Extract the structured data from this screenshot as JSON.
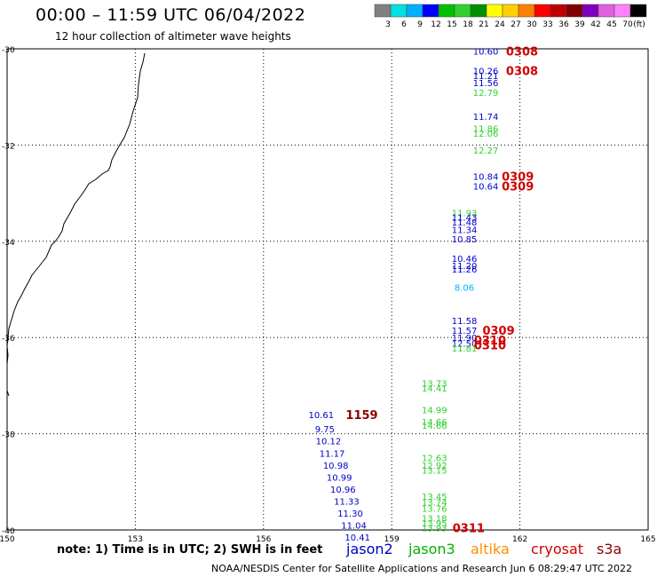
{
  "header": {
    "title": "00:00 – 11:59 UTC 06/04/2022",
    "subtitle": "12 hour collection of altimeter wave heights"
  },
  "colorbar": {
    "colors": [
      "#808080",
      "#00e0e0",
      "#00b0ff",
      "#0000ff",
      "#00c000",
      "#30d030",
      "#009000",
      "#ffff00",
      "#ffd000",
      "#ff8000",
      "#ff0000",
      "#c00000",
      "#800000",
      "#8000c0",
      "#e060e0",
      "#ff80ff",
      "#000000"
    ],
    "labels": [
      "3",
      "6",
      "9",
      "12",
      "15",
      "18",
      "21",
      "24",
      "27",
      "30",
      "33",
      "36",
      "39",
      "42",
      "45",
      "70",
      "(ft)"
    ]
  },
  "axes": {
    "lon_labels": [
      "150",
      "153",
      "156",
      "159",
      "162",
      "165"
    ],
    "lat_labels": [
      "-30",
      "-32",
      "-34",
      "-36",
      "-38",
      "-40"
    ]
  },
  "satellites": {
    "jason2": {
      "name": "jason2",
      "color": "#0000c8"
    },
    "jason3": {
      "name": "jason3",
      "color": "#00b000"
    },
    "altika": {
      "name": "altika",
      "color": "#ff8c00"
    },
    "cryosat": {
      "name": "cryosat",
      "color": "#d00000"
    },
    "s3a": {
      "name": "s3a",
      "color": "#8b0000"
    }
  },
  "footer": {
    "note": "note: 1) Time is in UTC; 2) SWH is in feet",
    "credit": "NOAA/NESDIS Center for Satellite Applications and Research   Jun  6 08:29:47 UTC 2022"
  },
  "chart_data": {
    "type": "scatter",
    "xlim": [
      150,
      165
    ],
    "ylim": [
      -40,
      -30
    ],
    "track_a_time": "0308",
    "track_a": [
      {
        "lat": -30.05,
        "v": "10.60",
        "c": "#0000c8"
      },
      {
        "lat": -30.45,
        "v": "10.26",
        "c": "#0000c8"
      },
      {
        "lat": -30.55,
        "v": "11.21",
        "c": "#0000c8"
      },
      {
        "lat": -30.7,
        "v": "11.56",
        "c": "#0000c8"
      },
      {
        "lat": -30.9,
        "v": "12.79",
        "c": "#30d030"
      },
      {
        "lat": -31.4,
        "v": "11.74",
        "c": "#0000c8"
      },
      {
        "lat": -31.65,
        "v": "11.86",
        "c": "#30d030"
      },
      {
        "lat": -31.75,
        "v": "12.06",
        "c": "#30d030"
      },
      {
        "lat": -32.1,
        "v": "12.27",
        "c": "#30d030"
      },
      {
        "lat": -32.65,
        "v": "10.84",
        "c": "#0000c8"
      },
      {
        "lat": -32.85,
        "v": "10.64",
        "c": "#0000c8"
      }
    ],
    "track_a_time2": "0309",
    "track_b": [
      {
        "lat": -33.4,
        "v": "11.93",
        "c": "#30d030"
      },
      {
        "lat": -33.5,
        "v": "11.43",
        "c": "#0000c8"
      },
      {
        "lat": -33.6,
        "v": "11.48",
        "c": "#0000c8"
      },
      {
        "lat": -33.75,
        "v": "11.34",
        "c": "#0000c8"
      },
      {
        "lat": -33.95,
        "v": "10.85",
        "c": "#0000c8"
      },
      {
        "lat": -34.35,
        "v": "10.46",
        "c": "#0000c8"
      },
      {
        "lat": -34.5,
        "v": "11.20",
        "c": "#0000c8"
      },
      {
        "lat": -34.58,
        "v": "11.26",
        "c": "#0000c8"
      },
      {
        "lat": -34.95,
        "v": "8.06",
        "c": "#00b0ff"
      },
      {
        "lat": -35.65,
        "v": "11.58",
        "c": "#0000c8"
      },
      {
        "lat": -35.85,
        "v": "11.57",
        "c": "#0000c8"
      },
      {
        "lat": -36.0,
        "v": "11.90",
        "c": "#0000c8"
      },
      {
        "lat": -36.12,
        "v": "12.50",
        "c": "#0000c8"
      },
      {
        "lat": -36.22,
        "v": "11.81",
        "c": "#30d030"
      }
    ],
    "track_b_times": [
      "0309",
      "0310",
      "0310"
    ],
    "track_c": [
      {
        "lat": -36.95,
        "v": "13.73",
        "c": "#30d030"
      },
      {
        "lat": -37.05,
        "v": "14.41",
        "c": "#30d030"
      },
      {
        "lat": -37.5,
        "v": "14.99",
        "c": "#30d030"
      },
      {
        "lat": -37.75,
        "v": "14.66",
        "c": "#30d030"
      },
      {
        "lat": -37.82,
        "v": "14.66",
        "c": "#30d030"
      },
      {
        "lat": -38.5,
        "v": "12.63",
        "c": "#30d030"
      },
      {
        "lat": -38.65,
        "v": "12.92",
        "c": "#30d030"
      },
      {
        "lat": -38.75,
        "v": "13.15",
        "c": "#30d030"
      },
      {
        "lat": -39.3,
        "v": "13.45",
        "c": "#30d030"
      },
      {
        "lat": -39.42,
        "v": "13.74",
        "c": "#30d030"
      },
      {
        "lat": -39.55,
        "v": "13.76",
        "c": "#30d030"
      },
      {
        "lat": -39.75,
        "v": "13.18",
        "c": "#30d030"
      },
      {
        "lat": -39.85,
        "v": "13.95",
        "c": "#30d030"
      },
      {
        "lat": -39.95,
        "v": "13.93",
        "c": "#30d030"
      }
    ],
    "track_c_time": "0311",
    "track_d_time": "1159",
    "track_d": [
      {
        "lat": -37.6,
        "v": "10.61",
        "c": "#0000c8"
      },
      {
        "lat": -37.9,
        "v": "9.75",
        "c": "#0000c8"
      },
      {
        "lat": -38.15,
        "v": "10.12",
        "c": "#0000c8"
      },
      {
        "lat": -38.4,
        "v": "11.17",
        "c": "#0000c8"
      },
      {
        "lat": -38.65,
        "v": "10.98",
        "c": "#0000c8"
      },
      {
        "lat": -38.9,
        "v": "10.99",
        "c": "#0000c8"
      },
      {
        "lat": -39.15,
        "v": "10.96",
        "c": "#0000c8"
      },
      {
        "lat": -39.4,
        "v": "11.33",
        "c": "#0000c8"
      },
      {
        "lat": -39.65,
        "v": "11.30",
        "c": "#0000c8"
      },
      {
        "lat": -39.9,
        "v": "11.04",
        "c": "#0000c8"
      },
      {
        "lat": -40.15,
        "v": "10.41",
        "c": "#0000c8"
      }
    ]
  }
}
